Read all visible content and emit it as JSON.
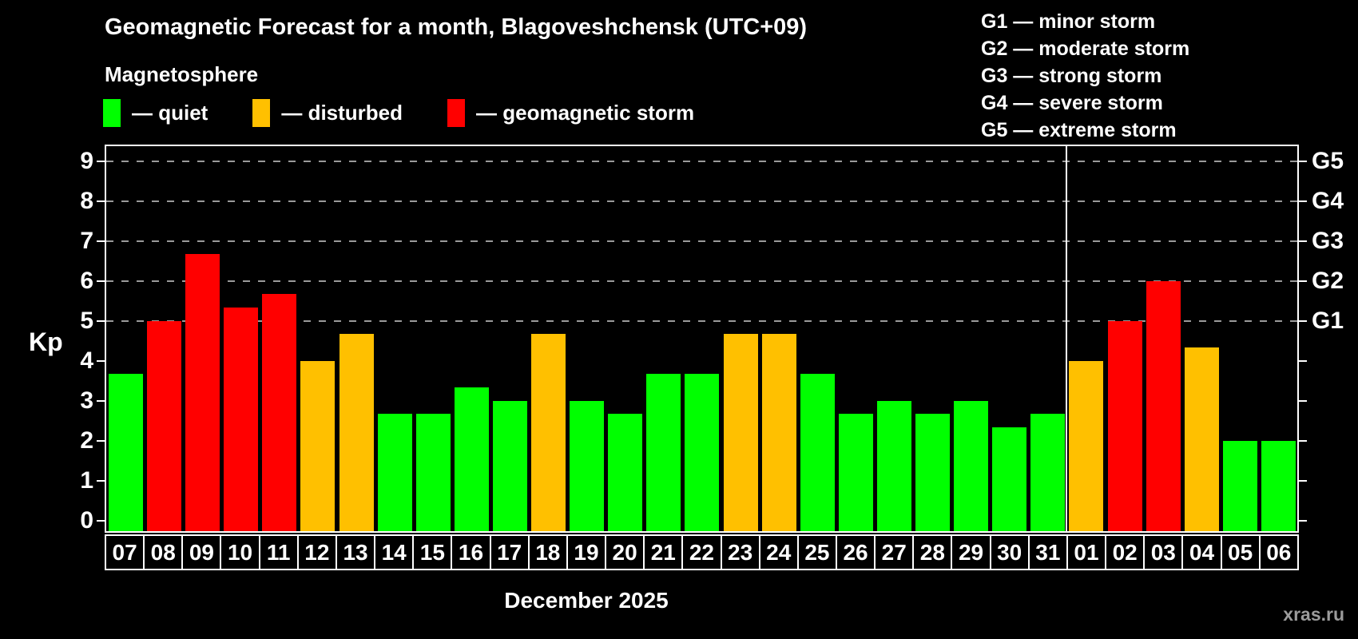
{
  "title": "Geomagnetic Forecast for a month, Blagoveshchensk (UTC+09)",
  "subtitle": "Magnetosphere",
  "condition_legend": [
    {
      "state": "quiet",
      "color": "#00ff00",
      "label": "— quiet"
    },
    {
      "state": "disturbed",
      "color": "#ffc000",
      "label": "— disturbed"
    },
    {
      "state": "storm",
      "color": "#ff0000",
      "label": "— geomagnetic storm"
    }
  ],
  "storm_scale_legend": [
    "G1 — minor storm",
    "G2 — moderate storm",
    "G3 — strong storm",
    "G4 — severe storm",
    "G5 — extreme storm"
  ],
  "watermark": "xras.ru",
  "chart_data": {
    "type": "bar",
    "ylabel": "Kp",
    "xlabel": "December 2025",
    "ylim": [
      0,
      9.38
    ],
    "yticks": [
      0,
      1,
      2,
      3,
      4,
      5,
      6,
      7,
      8,
      9
    ],
    "gridlines_at": [
      5,
      6,
      7,
      8,
      9
    ],
    "grid": "dashed horizontal, gray",
    "legend_position": "top",
    "right_axis_labels": [
      {
        "label": "G5",
        "kp": 9
      },
      {
        "label": "G4",
        "kp": 8
      },
      {
        "label": "G3",
        "kp": 7
      },
      {
        "label": "G2",
        "kp": 6
      },
      {
        "label": "G1",
        "kp": 5
      }
    ],
    "state_colors": {
      "quiet": "#00ff00",
      "disturbed": "#ffc000",
      "storm": "#ff0000"
    },
    "divider_after_index": 24,
    "days": [
      {
        "day": "07",
        "kp": 3.67,
        "state": "quiet"
      },
      {
        "day": "08",
        "kp": 5.0,
        "state": "storm"
      },
      {
        "day": "09",
        "kp": 6.67,
        "state": "storm"
      },
      {
        "day": "10",
        "kp": 5.33,
        "state": "storm"
      },
      {
        "day": "11",
        "kp": 5.67,
        "state": "storm"
      },
      {
        "day": "12",
        "kp": 4.0,
        "state": "disturbed"
      },
      {
        "day": "13",
        "kp": 4.67,
        "state": "disturbed"
      },
      {
        "day": "14",
        "kp": 2.67,
        "state": "quiet"
      },
      {
        "day": "15",
        "kp": 2.67,
        "state": "quiet"
      },
      {
        "day": "16",
        "kp": 3.33,
        "state": "quiet"
      },
      {
        "day": "17",
        "kp": 3.0,
        "state": "quiet"
      },
      {
        "day": "18",
        "kp": 4.67,
        "state": "disturbed"
      },
      {
        "day": "19",
        "kp": 3.0,
        "state": "quiet"
      },
      {
        "day": "20",
        "kp": 2.67,
        "state": "quiet"
      },
      {
        "day": "21",
        "kp": 3.67,
        "state": "quiet"
      },
      {
        "day": "22",
        "kp": 3.67,
        "state": "quiet"
      },
      {
        "day": "23",
        "kp": 4.67,
        "state": "disturbed"
      },
      {
        "day": "24",
        "kp": 4.67,
        "state": "disturbed"
      },
      {
        "day": "25",
        "kp": 3.67,
        "state": "quiet"
      },
      {
        "day": "26",
        "kp": 2.67,
        "state": "quiet"
      },
      {
        "day": "27",
        "kp": 3.0,
        "state": "quiet"
      },
      {
        "day": "28",
        "kp": 2.67,
        "state": "quiet"
      },
      {
        "day": "29",
        "kp": 3.0,
        "state": "quiet"
      },
      {
        "day": "30",
        "kp": 2.33,
        "state": "quiet"
      },
      {
        "day": "31",
        "kp": 2.67,
        "state": "quiet"
      },
      {
        "day": "01",
        "kp": 4.0,
        "state": "disturbed"
      },
      {
        "day": "02",
        "kp": 5.0,
        "state": "storm"
      },
      {
        "day": "03",
        "kp": 6.0,
        "state": "storm"
      },
      {
        "day": "04",
        "kp": 4.33,
        "state": "disturbed"
      },
      {
        "day": "05",
        "kp": 2.0,
        "state": "quiet"
      },
      {
        "day": "06",
        "kp": 2.0,
        "state": "quiet"
      }
    ]
  }
}
